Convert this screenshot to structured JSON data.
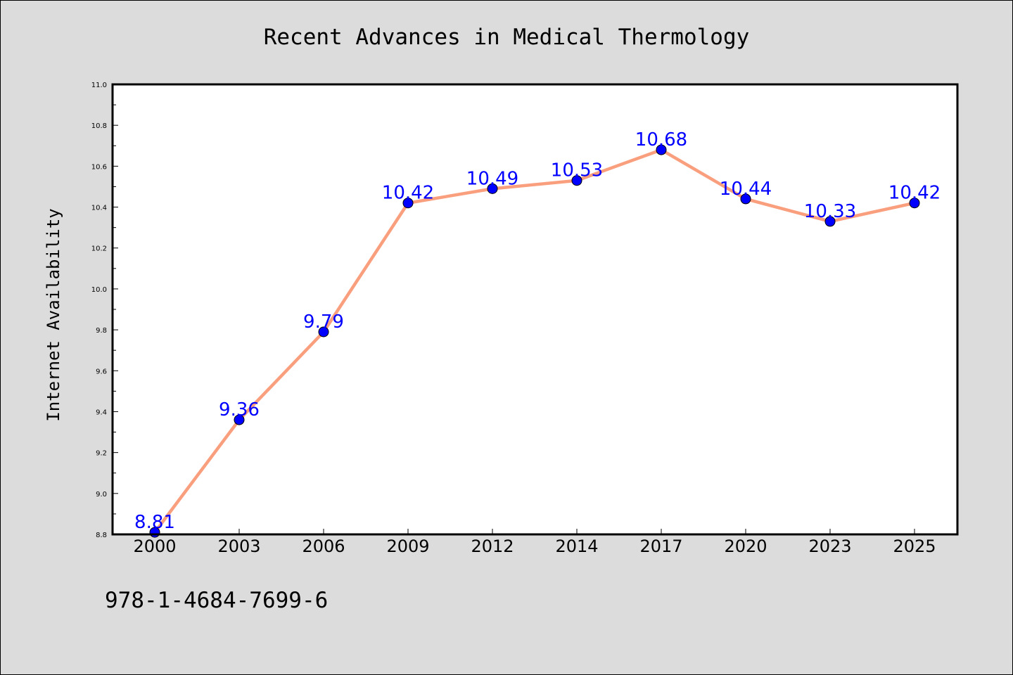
{
  "colors": {
    "background": "#dcdcdc",
    "plot_area": "#ffffff",
    "line": "#fa9f7e",
    "marker": "#0000ff",
    "data_label": "#0000ff"
  },
  "footer": {
    "code": "978-1-4684-7699-6"
  },
  "chart_data": {
    "type": "line",
    "title": "Recent Advances in Medical Thermology",
    "xlabel": "",
    "ylabel": "Internet Availability",
    "categories": [
      "2000",
      "2003",
      "2006",
      "2009",
      "2012",
      "2014",
      "2017",
      "2020",
      "2023",
      "2025"
    ],
    "series": [
      {
        "values": [
          8.81,
          9.36,
          9.79,
          10.42,
          10.49,
          10.53,
          10.68,
          10.44,
          10.33,
          10.42
        ]
      }
    ],
    "data_labels": [
      "8.81",
      "9.36",
      "9.79",
      "10.42",
      "10.49",
      "10.53",
      "10.68",
      "10.44",
      "10.33",
      "10.42"
    ],
    "ylim": [
      8.8,
      11.0
    ],
    "y_ticks": [
      "8.8",
      "9.0",
      "9.2",
      "9.4",
      "9.6",
      "9.8",
      "10.0",
      "10.2",
      "10.4",
      "10.6",
      "10.8",
      "11.0"
    ],
    "y_tick_values": [
      8.8,
      9.0,
      9.2,
      9.4,
      9.6,
      9.8,
      10.0,
      10.2,
      10.4,
      10.6,
      10.8,
      11.0
    ],
    "grid": false,
    "legend": "none"
  }
}
